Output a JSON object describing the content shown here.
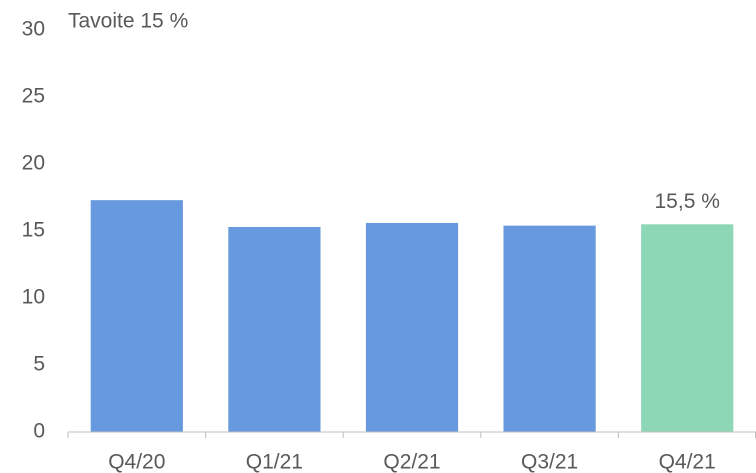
{
  "chart_data": {
    "type": "bar",
    "annotation": "Tavoite 15 %",
    "categories": [
      "Q4/20",
      "Q1/21",
      "Q2/21",
      "Q3/21",
      "Q4/21"
    ],
    "values": [
      17.3,
      15.3,
      15.6,
      15.4,
      15.5
    ],
    "value_labels": [
      null,
      null,
      null,
      null,
      "15,5 %"
    ],
    "colors": [
      "#6699dd",
      "#6699dd",
      "#6699dd",
      "#6699dd",
      "#8dd7b7"
    ],
    "ylim": [
      0,
      30
    ],
    "yticks": [
      0,
      5,
      10,
      15,
      20,
      25,
      30
    ],
    "grid": false
  }
}
